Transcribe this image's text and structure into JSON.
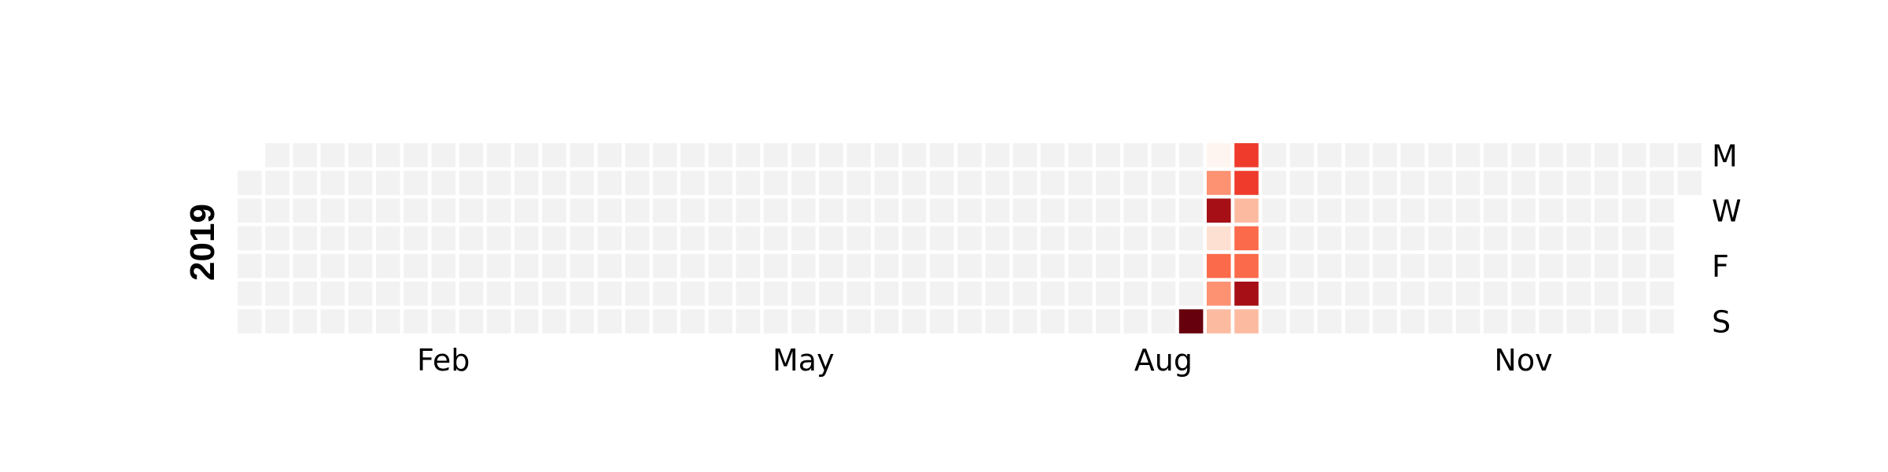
{
  "chart_data": {
    "type": "heatmap",
    "title": "",
    "year_label": "2019",
    "row_labels": [
      "M",
      "",
      "W",
      "",
      "F",
      "",
      "S"
    ],
    "month_labels": [
      {
        "label": "Feb",
        "week": 7
      },
      {
        "label": "May",
        "week": 20
      },
      {
        "label": "Aug",
        "week": 33
      },
      {
        "label": "Nov",
        "week": 46
      }
    ],
    "first_weekday": 1,
    "num_days": 365,
    "empty_color": "#f2f2f2",
    "colormap": [
      "#fff5f0",
      "#fee0d2",
      "#fcbba1",
      "#fc9272",
      "#fb6a4a",
      "#ef3b2c",
      "#cb181d",
      "#a50f15",
      "#67000d"
    ],
    "values": [
      {
        "week": 34,
        "day": 6,
        "value": 1.0
      },
      {
        "week": 35,
        "day": 0,
        "value": 0.02
      },
      {
        "week": 35,
        "day": 1,
        "value": 0.42
      },
      {
        "week": 35,
        "day": 2,
        "value": 0.82
      },
      {
        "week": 35,
        "day": 3,
        "value": 0.12
      },
      {
        "week": 35,
        "day": 4,
        "value": 0.5
      },
      {
        "week": 35,
        "day": 5,
        "value": 0.42
      },
      {
        "week": 35,
        "day": 6,
        "value": 0.22
      },
      {
        "week": 36,
        "day": 0,
        "value": 0.62
      },
      {
        "week": 36,
        "day": 1,
        "value": 0.62
      },
      {
        "week": 36,
        "day": 2,
        "value": 0.22
      },
      {
        "week": 36,
        "day": 3,
        "value": 0.52
      },
      {
        "week": 36,
        "day": 4,
        "value": 0.5
      },
      {
        "week": 36,
        "day": 5,
        "value": 0.88
      },
      {
        "week": 36,
        "day": 6,
        "value": 0.22
      }
    ]
  }
}
